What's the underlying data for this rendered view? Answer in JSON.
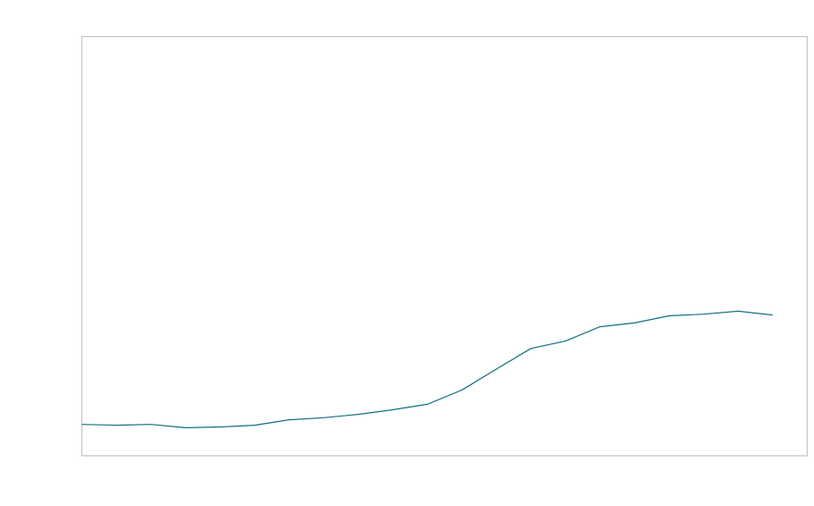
{
  "chart_data": {
    "type": "line",
    "title": "",
    "xlabel": "",
    "ylabel": "",
    "x": [
      0,
      1,
      2,
      3,
      4,
      5,
      6,
      7,
      8,
      9,
      10,
      11,
      12,
      13,
      14,
      15,
      16,
      17,
      18,
      19,
      20
    ],
    "xlim": [
      0,
      21
    ],
    "ylim": [
      0,
      100
    ],
    "grid": false,
    "series": [
      {
        "color": "#12707f",
        "values": [
          7.5,
          7.3,
          7.5,
          6.7,
          6.9,
          7.3,
          8.6,
          9.1,
          9.9,
          11.0,
          12.3,
          15.7,
          20.7,
          25.6,
          27.4,
          30.8,
          31.7,
          33.4,
          33.8,
          34.5,
          33.6
        ]
      }
    ],
    "frame_color": "#c0c0c0"
  }
}
